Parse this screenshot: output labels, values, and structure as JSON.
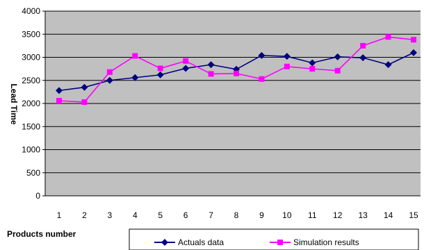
{
  "chart_data": {
    "type": "line",
    "title": "",
    "xlabel": "Products number",
    "ylabel": "Lead Time",
    "categories": [
      "1",
      "2",
      "3",
      "4",
      "5",
      "6",
      "7",
      "8",
      "9",
      "10",
      "11",
      "12",
      "13",
      "14",
      "15"
    ],
    "ylim": [
      0,
      4000
    ],
    "y_ticks": [
      "0",
      "500",
      "1000",
      "1500",
      "2000",
      "2500",
      "3000",
      "3500",
      "4000"
    ],
    "grid": "horizontal",
    "legend_position": "bottom",
    "series": [
      {
        "name": "Actuals data",
        "color": "#000080",
        "marker": "diamond",
        "values": [
          2280,
          2350,
          2500,
          2560,
          2620,
          2760,
          2840,
          2740,
          3040,
          3020,
          2880,
          3010,
          2990,
          2840,
          3100
        ]
      },
      {
        "name": "Simulation results",
        "color": "#ff00ff",
        "marker": "square",
        "values": [
          2060,
          2030,
          2680,
          3030,
          2760,
          2920,
          2640,
          2650,
          2530,
          2800,
          2750,
          2710,
          3250,
          3440,
          3380
        ]
      }
    ]
  },
  "colors": {
    "plot_background": "#c0c0c0",
    "gridline": "#000000"
  }
}
